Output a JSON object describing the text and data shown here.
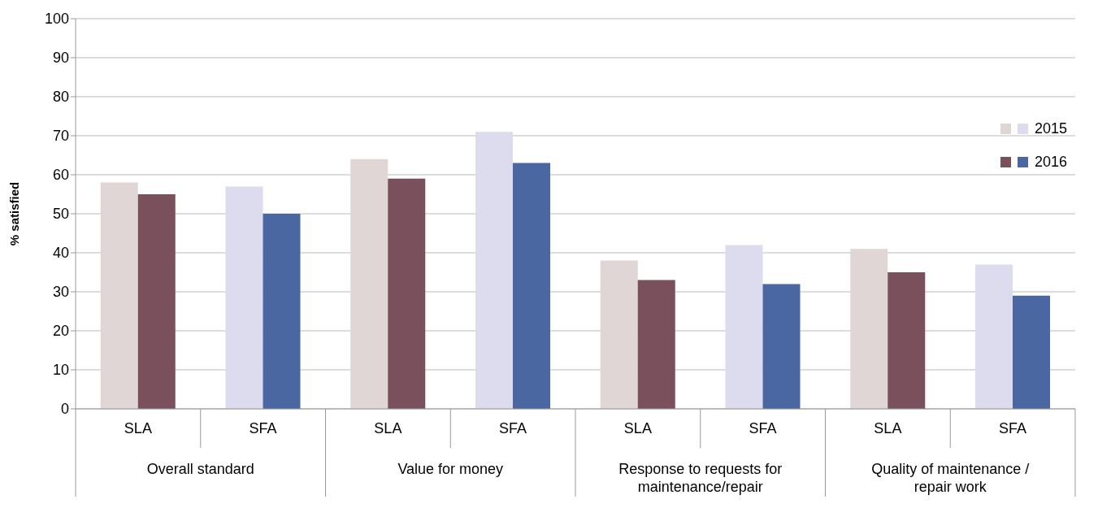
{
  "chart_data": {
    "type": "bar",
    "ylabel": "% satisfied",
    "categories": [
      "SLA",
      "SFA",
      "SLA",
      "SFA",
      "SLA",
      "SFA",
      "SLA",
      "SFA"
    ],
    "annotations": [
      "Overall standard",
      "Value for money",
      "Response to requests for maintenance/repair",
      "Quality of maintenance / repair work"
    ],
    "series": [
      {
        "name": "2015",
        "colors": [
          "#e0d6d6",
          "#dcdcee",
          "#e0d6d6",
          "#dcdcee",
          "#e0d6d6",
          "#dcdcee",
          "#e0d6d6",
          "#dcdcee"
        ],
        "values": [
          58,
          57,
          64,
          71,
          38,
          42,
          41,
          37
        ]
      },
      {
        "name": "2016",
        "colors": [
          "#7a505c",
          "#4a67a1",
          "#7a505c",
          "#4a67a1",
          "#7a505c",
          "#4a67a1",
          "#7a505c",
          "#4a67a1"
        ],
        "values": [
          55,
          50,
          59,
          63,
          33,
          32,
          35,
          29
        ]
      }
    ],
    "ylim": [
      0,
      100
    ],
    "yticks": [
      0,
      10,
      20,
      30,
      40,
      50,
      60,
      70,
      80,
      90,
      100
    ],
    "grid": "y",
    "legend": "right"
  }
}
